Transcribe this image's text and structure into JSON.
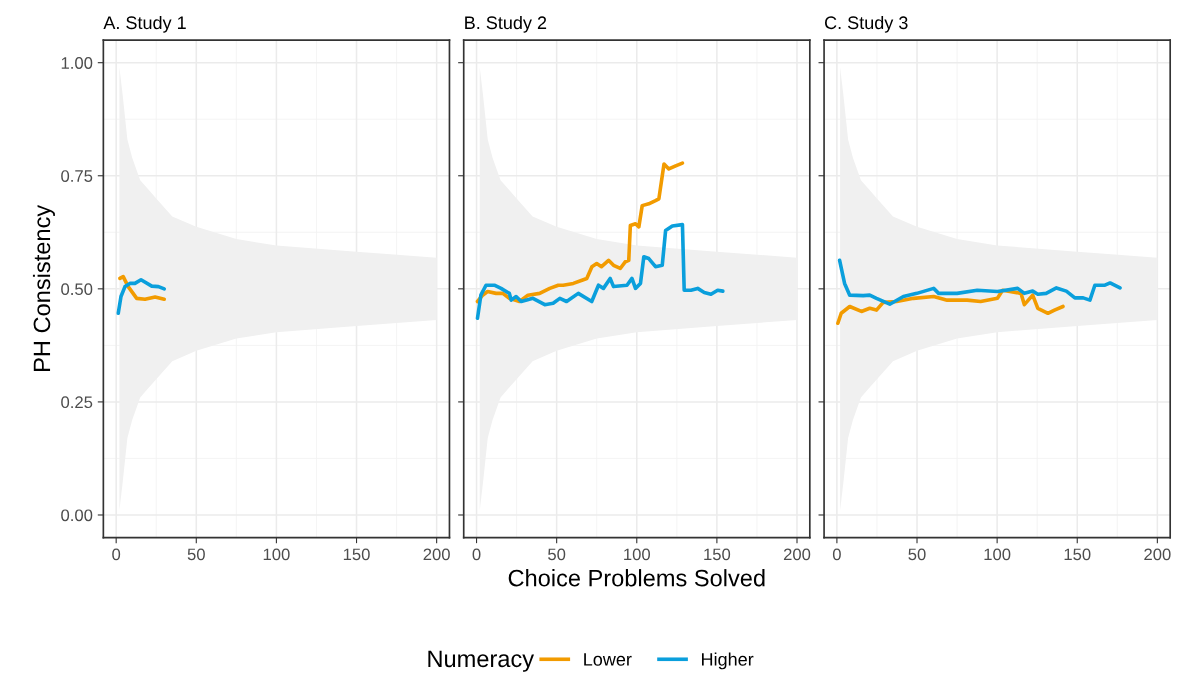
{
  "chart_data": [
    {
      "type": "line",
      "title": "A. Study 1",
      "ylabel": "PH Consistency",
      "xlim": [
        -8,
        208
      ],
      "xticks": [
        0,
        50,
        100,
        150,
        200
      ],
      "ylim": [
        -0.05,
        1.05
      ],
      "yticks": [
        {
          "value": 0,
          "label": "0.00"
        },
        {
          "value": 0.25,
          "label": "0.25"
        },
        {
          "value": 0.5,
          "label": "0.50"
        },
        {
          "value": 0.75,
          "label": "0.75"
        },
        {
          "value": 1,
          "label": "1.00"
        }
      ],
      "grid": true,
      "series": [
        {
          "type": "area",
          "color": "#f0f0f0",
          "x": [
            2,
            4,
            7,
            10,
            15,
            20,
            25,
            35,
            50,
            75,
            100,
            150,
            200
          ],
          "values": [
            null,
            null,
            null,
            null,
            null,
            null,
            null,
            null,
            null,
            null,
            null,
            null,
            null
          ],
          "upper": [
            0.99,
            0.93,
            0.83,
            0.79,
            0.74,
            0.72,
            0.7,
            0.66,
            0.637,
            0.61,
            0.596,
            0.582,
            0.569
          ],
          "lower": [
            0.01,
            0.07,
            0.17,
            0.21,
            0.26,
            0.28,
            0.3,
            0.34,
            0.363,
            0.39,
            0.404,
            0.418,
            0.431
          ]
        },
        {
          "color": "#f29b00",
          "x": [
            2.3,
            4.4,
            7.5,
            12.8,
            18,
            24.3,
            30
          ],
          "values": [
            0.523,
            0.527,
            0.505,
            0.479,
            0.477,
            0.482,
            0.477
          ]
        },
        {
          "color": "#0a9fdc",
          "x": [
            1.3,
            3,
            5.5,
            8.6,
            11.7,
            15.5,
            22.2,
            26.4,
            30
          ],
          "values": [
            0.446,
            0.483,
            0.505,
            0.512,
            0.512,
            0.52,
            0.506,
            0.505,
            0.5
          ]
        }
      ]
    },
    {
      "type": "line",
      "title": "B. Study 2",
      "xlabel": "Choice Problems Solved",
      "xlim": [
        -8,
        208
      ],
      "xticks": [
        0,
        50,
        100,
        150,
        200
      ],
      "ylim": [
        -0.05,
        1.05
      ],
      "yticks": [
        0,
        0.25,
        0.5,
        0.75,
        1
      ],
      "grid": true,
      "tick_labels": "x",
      "legend": "bottom",
      "legend_title": "Numeracy",
      "series": [
        {
          "type": "area",
          "color": "#f0f0f0",
          "x": [
            2,
            4,
            7,
            10,
            15,
            20,
            25,
            35,
            50,
            75,
            100,
            150,
            200
          ],
          "values": [
            null,
            null,
            null,
            null,
            null,
            null,
            null,
            null,
            null,
            null,
            null,
            null,
            null
          ],
          "upper": [
            0.99,
            0.93,
            0.83,
            0.79,
            0.74,
            0.72,
            0.7,
            0.66,
            0.637,
            0.61,
            0.596,
            0.582,
            0.569
          ],
          "lower": [
            0.01,
            0.07,
            0.17,
            0.21,
            0.26,
            0.28,
            0.3,
            0.34,
            0.363,
            0.39,
            0.404,
            0.418,
            0.431
          ]
        },
        {
          "name": "Lower",
          "color": "#f29b00",
          "x": [
            0.6,
            3.8,
            6.9,
            12.2,
            16.4,
            20.5,
            26.8,
            32.1,
            39.4,
            45.7,
            51,
            54.1,
            60.4,
            65.8,
            68.8,
            72,
            75,
            78,
            82.4,
            85.5,
            89.7,
            92.9,
            95,
            96,
            99.2,
            101.3,
            103.4,
            107.5,
            111.7,
            113.8,
            117,
            120,
            124.3,
            128.5
          ],
          "values": [
            0.472,
            0.486,
            0.494,
            0.49,
            0.49,
            0.479,
            0.472,
            0.486,
            0.49,
            0.501,
            0.508,
            0.508,
            0.512,
            0.519,
            0.523,
            0.549,
            0.556,
            0.549,
            0.563,
            0.552,
            0.545,
            0.56,
            0.563,
            0.64,
            0.644,
            0.637,
            0.684,
            0.688,
            0.695,
            0.699,
            0.776,
            0.765,
            0.772,
            0.778
          ]
        },
        {
          "name": "Higher",
          "color": "#0a9fdc",
          "x": [
            0.6,
            2.7,
            5.9,
            11.1,
            15.3,
            20.5,
            21.6,
            24.7,
            27.9,
            35.2,
            42.6,
            47.8,
            52,
            56.2,
            63.5,
            71.9,
            76.1,
            79.2,
            83.4,
            85.5,
            93.9,
            97,
            99.2,
            102.3,
            104.4,
            107.5,
            111.7,
            115.9,
            118,
            122.2,
            128.5,
            129.6,
            133.8,
            138,
            142.1,
            146.3,
            150.5,
            153.7
          ],
          "values": [
            0.435,
            0.486,
            0.508,
            0.508,
            0.501,
            0.49,
            0.475,
            0.483,
            0.472,
            0.479,
            0.465,
            0.468,
            0.479,
            0.472,
            0.49,
            0.472,
            0.508,
            0.501,
            0.523,
            0.505,
            0.508,
            0.523,
            0.501,
            0.512,
            0.571,
            0.567,
            0.549,
            0.552,
            0.629,
            0.639,
            0.642,
            0.497,
            0.497,
            0.501,
            0.492,
            0.488,
            0.497,
            0.495
          ]
        }
      ]
    },
    {
      "type": "line",
      "title": "C. Study 3",
      "xlim": [
        -8,
        208
      ],
      "xticks": [
        0,
        50,
        100,
        150,
        200
      ],
      "ylim": [
        -0.05,
        1.05
      ],
      "yticks": [
        0,
        0.25,
        0.5,
        0.75,
        1
      ],
      "grid": true,
      "tick_labels": "x",
      "series": [
        {
          "type": "area",
          "color": "#f0f0f0",
          "x": [
            2,
            4,
            7,
            10,
            15,
            20,
            25,
            35,
            50,
            75,
            100,
            150,
            200
          ],
          "values": [
            null,
            null,
            null,
            null,
            null,
            null,
            null,
            null,
            null,
            null,
            null,
            null,
            null
          ],
          "upper": [
            0.99,
            0.93,
            0.83,
            0.79,
            0.74,
            0.72,
            0.7,
            0.66,
            0.637,
            0.61,
            0.596,
            0.582,
            0.569
          ],
          "lower": [
            0.01,
            0.07,
            0.17,
            0.21,
            0.26,
            0.28,
            0.3,
            0.34,
            0.363,
            0.39,
            0.404,
            0.418,
            0.431
          ]
        },
        {
          "color": "#f29b00",
          "x": [
            0.6,
            2.7,
            8,
            15.3,
            20.5,
            24.7,
            28.9,
            37.3,
            47.8,
            60.4,
            68.8,
            81.3,
            89.7,
            100.2,
            103.4,
            114.9,
            117,
            122.2,
            125.4,
            131.7,
            135.8,
            141.1
          ],
          "values": [
            0.424,
            0.446,
            0.461,
            0.45,
            0.457,
            0.453,
            0.47,
            0.472,
            0.479,
            0.483,
            0.475,
            0.475,
            0.472,
            0.479,
            0.497,
            0.49,
            0.465,
            0.486,
            0.457,
            0.446,
            0.453,
            0.461
          ]
        },
        {
          "color": "#0a9fdc",
          "x": [
            1.7,
            4.8,
            8,
            16.4,
            20.5,
            24.7,
            33,
            41.5,
            49.9,
            60.4,
            63.5,
            75,
            87.6,
            100.2,
            112.8,
            117,
            122.2,
            125.4,
            130.6,
            137,
            143.2,
            148.5,
            153.7,
            157.9,
            161,
            167.3,
            170.5,
            176.7
          ],
          "values": [
            0.563,
            0.512,
            0.486,
            0.485,
            0.486,
            0.479,
            0.466,
            0.483,
            0.49,
            0.501,
            0.49,
            0.49,
            0.497,
            0.494,
            0.501,
            0.49,
            0.495,
            0.488,
            0.49,
            0.502,
            0.495,
            0.48,
            0.48,
            0.475,
            0.508,
            0.508,
            0.513,
            0.502
          ]
        }
      ]
    }
  ]
}
